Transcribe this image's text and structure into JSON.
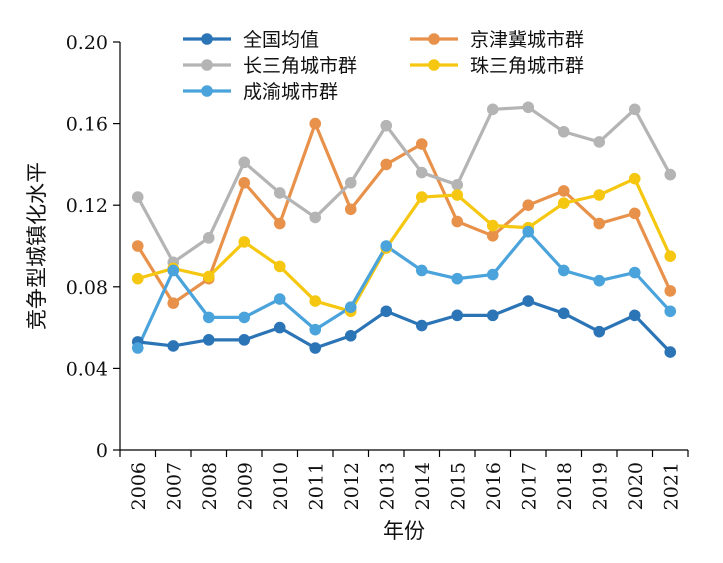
{
  "chart_data": {
    "type": "line",
    "title": "",
    "xlabel": "年份",
    "ylabel": "竞争型城镇化水平",
    "ylim": [
      0,
      0.2
    ],
    "yticks": [
      "0",
      "0.04",
      "0.08",
      "0.12",
      "0.16",
      "0.20"
    ],
    "ytick_values": [
      0,
      0.04,
      0.08,
      0.12,
      0.16,
      0.2
    ],
    "categories": [
      "2006",
      "2007",
      "2008",
      "2009",
      "2010",
      "2011",
      "2012",
      "2013",
      "2014",
      "2015",
      "2016",
      "2017",
      "2018",
      "2019",
      "2020",
      "2021"
    ],
    "grid": false,
    "legend_position": "top",
    "series": [
      {
        "name": "全国均值",
        "color": "#2b74b6",
        "values": [
          0.053,
          0.051,
          0.054,
          0.054,
          0.06,
          0.05,
          0.056,
          0.068,
          0.061,
          0.066,
          0.066,
          0.073,
          0.067,
          0.058,
          0.066,
          0.048
        ]
      },
      {
        "name": "京津冀城市群",
        "color": "#e8914a",
        "values": [
          0.1,
          0.072,
          0.084,
          0.131,
          0.111,
          0.16,
          0.118,
          0.14,
          0.15,
          0.112,
          0.105,
          0.12,
          0.127,
          0.111,
          0.116,
          0.078
        ]
      },
      {
        "name": "长三角城市群",
        "color": "#b4b4b4",
        "values": [
          0.124,
          0.092,
          0.104,
          0.141,
          0.126,
          0.114,
          0.131,
          0.159,
          0.136,
          0.13,
          0.167,
          0.168,
          0.156,
          0.151,
          0.167,
          0.135
        ]
      },
      {
        "name": "珠三角城市群",
        "color": "#f5c711",
        "values": [
          0.084,
          0.089,
          0.085,
          0.102,
          0.09,
          0.073,
          0.068,
          0.099,
          0.124,
          0.125,
          0.11,
          0.109,
          0.121,
          0.125,
          0.133,
          0.095
        ]
      },
      {
        "name": "成渝城市群",
        "color": "#4ba3dc",
        "values": [
          0.05,
          0.088,
          0.065,
          0.065,
          0.074,
          0.059,
          0.07,
          0.1,
          0.088,
          0.084,
          0.086,
          0.107,
          0.088,
          0.083,
          0.087,
          0.068
        ]
      }
    ]
  }
}
